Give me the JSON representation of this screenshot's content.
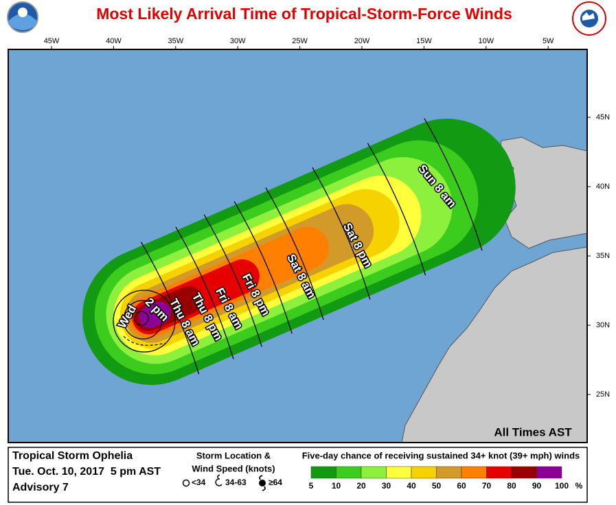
{
  "title": "Most Likely Arrival Time of Tropical-Storm-Force Winds",
  "lon_labels": [
    "45W",
    "40W",
    "35W",
    "30W",
    "25W",
    "20W",
    "15W",
    "10W",
    "5W"
  ],
  "lat_labels": [
    "45N",
    "40N",
    "35N",
    "30N",
    "25N"
  ],
  "time_labels": [
    "Wed",
    "2 pm",
    "Thu 8 am",
    "Thu 8 pm",
    "Fri 8 am",
    "Fri 8 pm",
    "Sat 8 am",
    "Sat 8 pm",
    "Sun 8 am"
  ],
  "note": "All Times AST",
  "storm": {
    "name": "Tropical Storm Ophelia",
    "date": "Tue. Oct. 10, 2017  5 pm AST",
    "advisory": "Advisory 7"
  },
  "storm_key": {
    "title": [
      "Storm Location &",
      "Wind Speed (knots)"
    ],
    "items": [
      "<34",
      "34-63",
      "≥64"
    ]
  },
  "scale": {
    "title": "Five-day chance of receiving sustained 34+ knot (39+ mph) winds",
    "labels": [
      5,
      10,
      20,
      30,
      40,
      50,
      60,
      70,
      80,
      90,
      100
    ],
    "unit": "%",
    "colors": [
      "#129a12",
      "#3ccc1e",
      "#8cf03c",
      "#ffff3c",
      "#f5d200",
      "#d29a28",
      "#ff8000",
      "#e60000",
      "#9a0000",
      "#8c0096"
    ]
  }
}
